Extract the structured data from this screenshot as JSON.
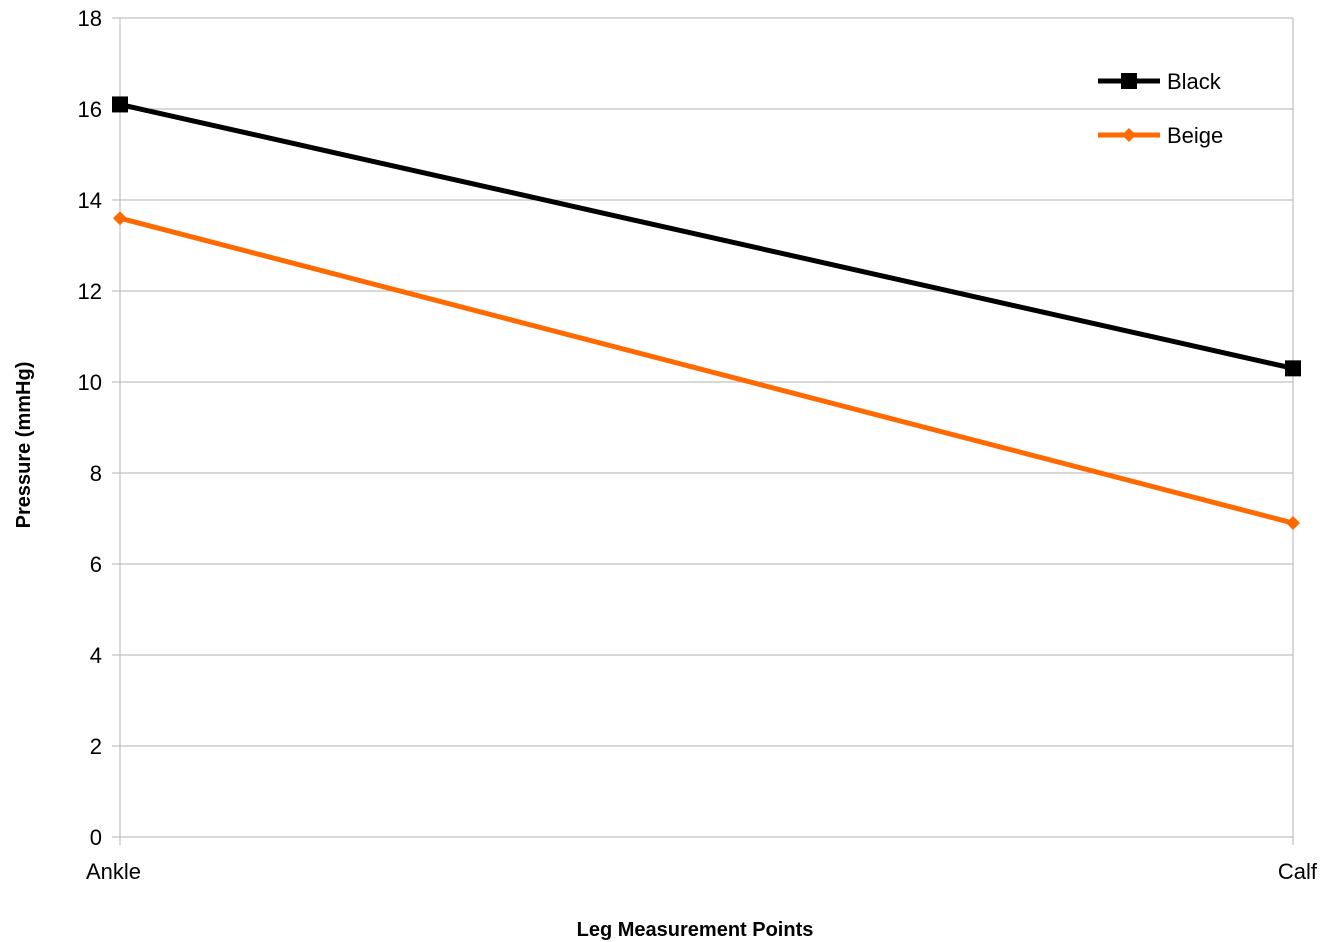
{
  "chart_data": {
    "type": "line",
    "title": "",
    "xlabel": "Leg Measurement Points",
    "ylabel": "Pressure (mmHg)",
    "categories": [
      "Ankle",
      "Calf"
    ],
    "ylim": [
      0,
      18
    ],
    "yticks": [
      0,
      2,
      4,
      6,
      8,
      10,
      12,
      14,
      16,
      18
    ],
    "ytick_labels": [
      "0",
      "2",
      "4",
      "6",
      "8",
      "10",
      "12",
      "14",
      "16",
      "18"
    ],
    "grid": true,
    "legend_position": "top-right",
    "series": [
      {
        "name": "Black",
        "values": [
          16.1,
          10.3
        ],
        "color": "#000000",
        "marker": "square"
      },
      {
        "name": "Beige",
        "values": [
          13.6,
          6.9
        ],
        "color": "#ff6a00",
        "marker": "diamond"
      }
    ]
  }
}
